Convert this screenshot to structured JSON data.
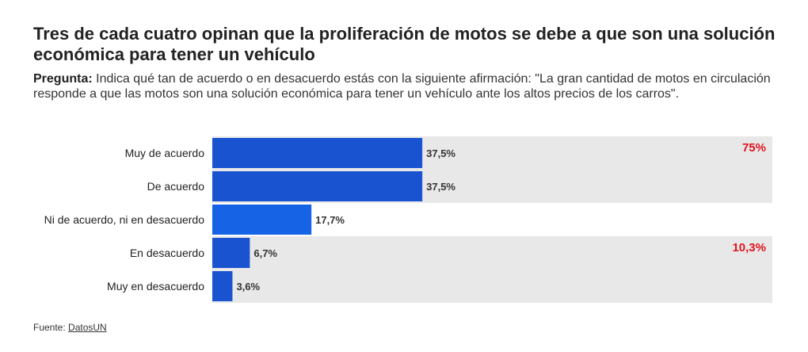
{
  "title": "Tres de cada cuatro opinan que la proliferación de motos se debe a que son una solución económica para tener un vehículo",
  "question": {
    "label": "Pregunta:",
    "text": "Indica qué tan de acuerdo o en desacuerdo estás con la siguiente afirmación: \"La gran cantidad de motos en circulación responde a que las motos son una solución económica para tener un vehículo ante los altos precios de los carros\"."
  },
  "chart_data": {
    "type": "bar",
    "orientation": "horizontal",
    "categories": [
      "Muy de acuerdo",
      "De acuerdo",
      "Ni de acuerdo, ni en desacuerdo",
      "En desacuerdo",
      "Muy en desacuerdo"
    ],
    "values": [
      37.5,
      37.5,
      17.7,
      6.7,
      3.6
    ],
    "value_labels": [
      "37,5%",
      "37,5%",
      "17,7%",
      "6,7%",
      "3,6%"
    ],
    "xlim": [
      0,
      100
    ],
    "bar_colors": [
      "#1a53d0",
      "#1a53d0",
      "#1763e6",
      "#1a53d0",
      "#1a53d0"
    ],
    "groups": [
      {
        "categories": [
          "Muy de acuerdo",
          "De acuerdo"
        ],
        "total_label": "75%",
        "shaded": true
      },
      {
        "categories": [
          "En desacuerdo",
          "Muy en desacuerdo"
        ],
        "total_label": "10,3%",
        "shaded": true
      }
    ],
    "group_shade_color": "#e8e8e8",
    "total_color": "#e0141e"
  },
  "source": {
    "label": "Fuente:",
    "link": "DatosUN"
  }
}
